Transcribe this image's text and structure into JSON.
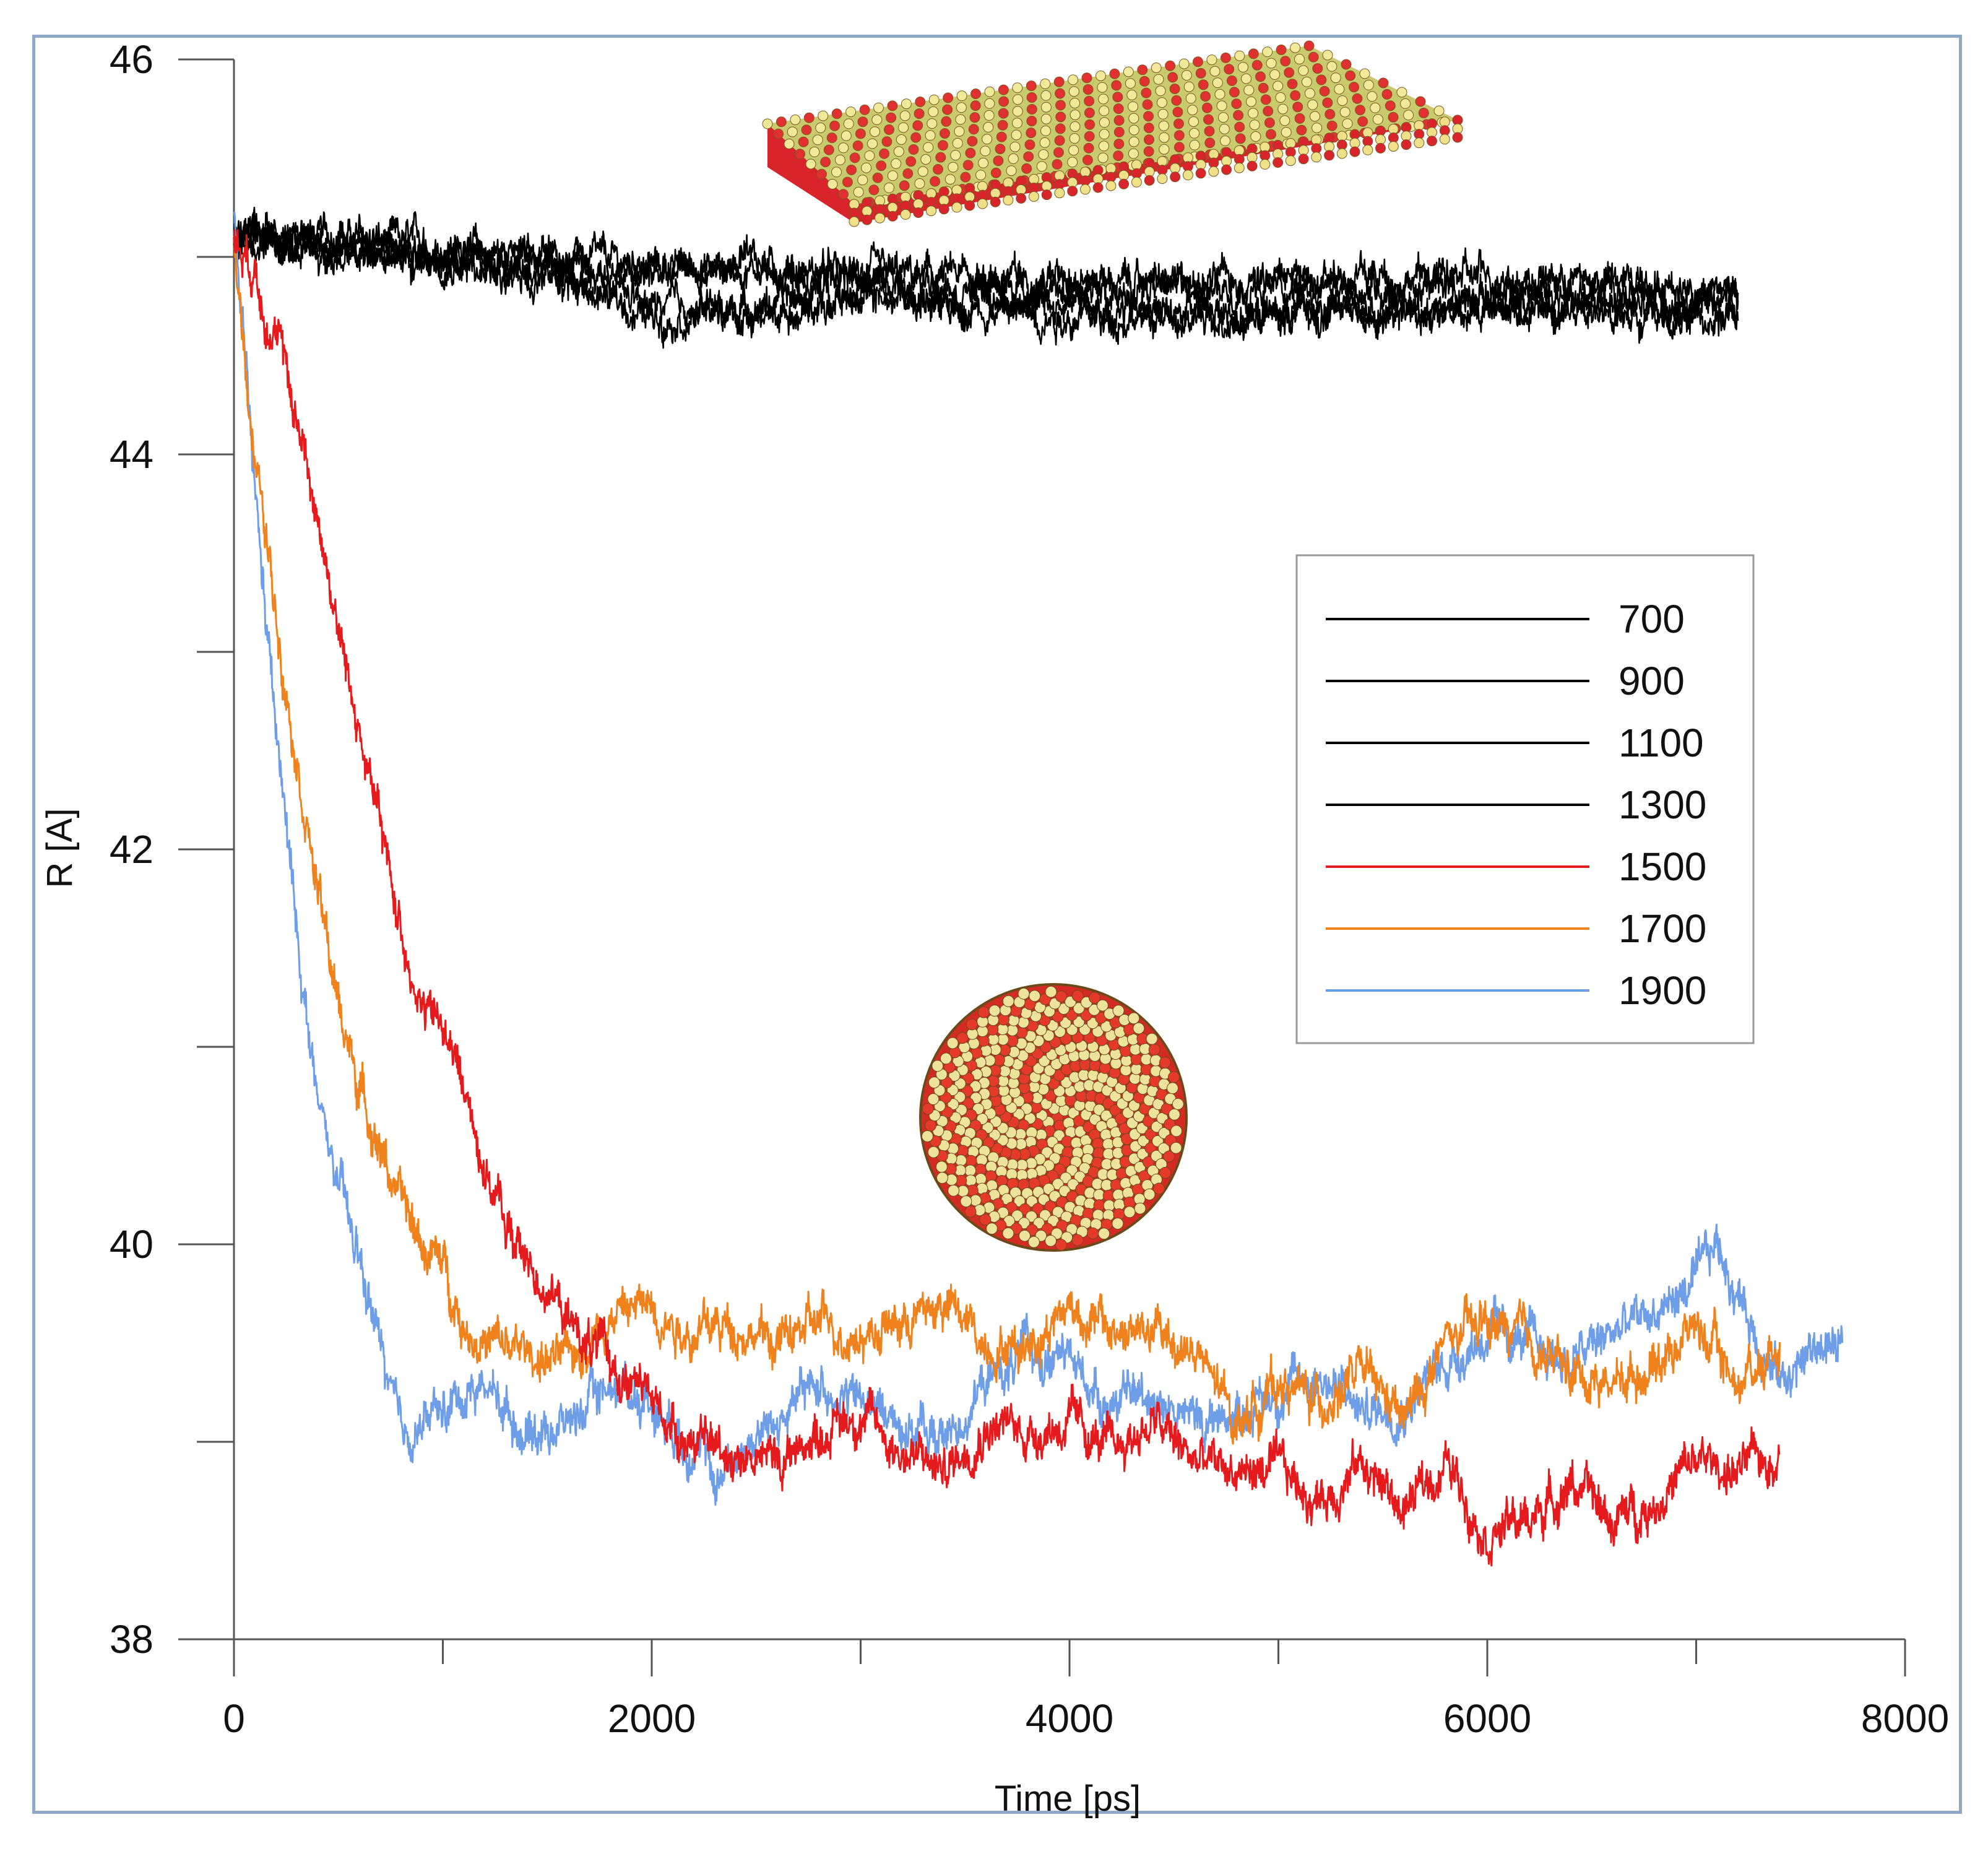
{
  "chart_data": {
    "type": "line",
    "title": "",
    "xlabel": "Time [ps]",
    "ylabel": "R [A]",
    "xlim": [
      0,
      8000
    ],
    "ylim": [
      38,
      46
    ],
    "x_ticks": [
      0,
      2000,
      4000,
      6000,
      8000
    ],
    "y_ticks": [
      38,
      40,
      42,
      44,
      46
    ],
    "x_tick_labels": [
      "0",
      "2000",
      "4000",
      "6000",
      "8000"
    ],
    "y_tick_labels": [
      "38",
      "40",
      "42",
      "44",
      "46"
    ],
    "legend_position": "right-middle",
    "series": [
      {
        "name": "700",
        "color": "#000000",
        "x": [
          0,
          500,
          1000,
          1500,
          2000,
          2500,
          3000,
          3500,
          4000,
          4500,
          5000,
          5500,
          6000,
          6500,
          7000,
          7200
        ],
        "values": [
          45.1,
          45.1,
          45.05,
          45.0,
          44.95,
          44.95,
          44.9,
          44.9,
          44.88,
          44.85,
          44.85,
          44.85,
          44.82,
          44.82,
          44.8,
          44.8
        ]
      },
      {
        "name": "900",
        "color": "#000000",
        "x": [
          0,
          500,
          1000,
          1500,
          2000,
          2500,
          3000,
          3500,
          4000,
          4500,
          5000,
          5500,
          6000,
          6500,
          7000,
          7200
        ],
        "values": [
          45.1,
          45.05,
          45.0,
          44.95,
          44.9,
          44.95,
          44.9,
          44.85,
          44.85,
          44.85,
          44.9,
          44.9,
          44.9,
          44.88,
          44.85,
          44.85
        ]
      },
      {
        "name": "1100",
        "color": "#000000",
        "x": [
          0,
          500,
          1000,
          1500,
          2000,
          2500,
          3000,
          3500,
          4000,
          4500,
          5000,
          5500,
          6000,
          6500,
          7000,
          7200
        ],
        "values": [
          45.1,
          45.05,
          45.0,
          44.95,
          44.75,
          44.7,
          44.8,
          44.8,
          44.75,
          44.7,
          44.7,
          44.72,
          44.75,
          44.75,
          44.75,
          44.75
        ]
      },
      {
        "name": "1300",
        "color": "#000000",
        "x": [
          0,
          500,
          1000,
          1500,
          2000,
          2500,
          3000,
          3500,
          4000,
          4500,
          5000,
          5500,
          6000,
          6500,
          7000,
          7200
        ],
        "values": [
          45.1,
          45.0,
          44.98,
          44.9,
          44.7,
          44.75,
          44.85,
          44.75,
          44.7,
          44.7,
          44.72,
          44.75,
          44.75,
          44.72,
          44.72,
          44.7
        ]
      },
      {
        "name": "1500",
        "color": "#e41a1c",
        "x": [
          0,
          100,
          200,
          300,
          400,
          500,
          600,
          700,
          800,
          900,
          1000,
          1100,
          1200,
          1300,
          1400,
          1500,
          1600,
          1800,
          2000,
          2200,
          2400,
          2600,
          2800,
          3000,
          3200,
          3400,
          3600,
          3800,
          4000,
          4200,
          4400,
          4600,
          4800,
          5000,
          5200,
          5400,
          5600,
          5800,
          6000,
          6200,
          6400,
          6600,
          6800,
          7000,
          7200,
          7400
        ],
        "values": [
          45.1,
          44.95,
          44.6,
          44.2,
          43.7,
          43.1,
          42.6,
          42.1,
          41.6,
          41.2,
          41.1,
          40.8,
          40.4,
          40.1,
          39.9,
          39.8,
          39.6,
          39.4,
          39.2,
          39.0,
          38.95,
          38.9,
          39.05,
          39.15,
          38.95,
          38.85,
          39.1,
          39.05,
          39.1,
          38.95,
          39.1,
          38.9,
          38.85,
          38.85,
          38.7,
          38.9,
          38.65,
          38.9,
          38.55,
          38.6,
          38.8,
          38.6,
          38.7,
          38.9,
          38.85,
          38.95
        ]
      },
      {
        "name": "1700",
        "color": "#f0821e",
        "x": [
          0,
          100,
          200,
          300,
          400,
          500,
          600,
          700,
          800,
          900,
          1000,
          1100,
          1200,
          1400,
          1600,
          1800,
          2000,
          2200,
          2400,
          2600,
          2800,
          3000,
          3200,
          3400,
          3600,
          3800,
          4000,
          4200,
          4400,
          4600,
          4800,
          5000,
          5200,
          5400,
          5600,
          5800,
          6000,
          6200,
          6400,
          6600,
          6800,
          7000,
          7200,
          7400
        ],
        "values": [
          45.1,
          44.0,
          43.2,
          42.5,
          41.8,
          41.2,
          40.8,
          40.5,
          40.2,
          40.0,
          39.9,
          39.6,
          39.5,
          39.45,
          39.4,
          39.65,
          39.7,
          39.55,
          39.6,
          39.5,
          39.6,
          39.55,
          39.6,
          39.7,
          39.5,
          39.5,
          39.7,
          39.55,
          39.55,
          39.45,
          39.1,
          39.3,
          39.2,
          39.35,
          39.1,
          39.5,
          39.6,
          39.5,
          39.35,
          39.3,
          39.4,
          39.6,
          39.3,
          39.5
        ]
      },
      {
        "name": "1900",
        "color": "#6f9ee8",
        "x": [
          0,
          100,
          200,
          300,
          400,
          500,
          600,
          700,
          800,
          900,
          1000,
          1100,
          1200,
          1400,
          1600,
          1800,
          2000,
          2200,
          2300,
          2400,
          2600,
          2800,
          3000,
          3200,
          3400,
          3600,
          3800,
          4000,
          4200,
          4400,
          4600,
          4800,
          5000,
          5200,
          5400,
          5600,
          5800,
          6000,
          6200,
          6400,
          6600,
          6800,
          7000,
          7100,
          7200,
          7400,
          7600,
          7700
        ],
        "values": [
          45.2,
          43.8,
          42.6,
          41.6,
          40.7,
          40.3,
          39.9,
          39.5,
          39.0,
          39.1,
          39.15,
          39.25,
          39.3,
          39.05,
          39.1,
          39.3,
          39.2,
          39.0,
          38.8,
          38.95,
          39.1,
          39.3,
          39.2,
          39.1,
          39.0,
          39.3,
          39.45,
          39.4,
          39.2,
          39.25,
          39.1,
          39.15,
          39.25,
          39.35,
          39.15,
          39.2,
          39.4,
          39.55,
          39.5,
          39.4,
          39.55,
          39.65,
          39.8,
          40.0,
          39.75,
          39.3,
          39.5,
          39.45
        ]
      }
    ]
  }
}
